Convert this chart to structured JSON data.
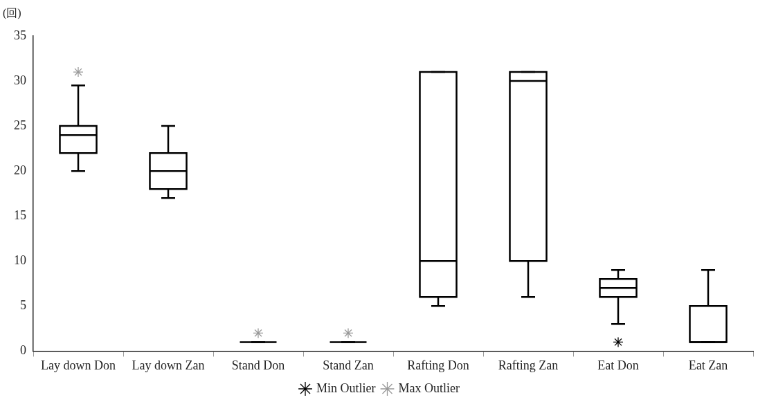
{
  "chart_data": {
    "type": "box",
    "ylabel": "(回)",
    "categories": [
      "Lay down Don",
      "Lay down Zan",
      "Stand Don",
      "Stand Zan",
      "Rafting Don",
      "Rafting Zan",
      "Eat Don",
      "Eat Zan"
    ],
    "series": [
      {
        "color": "#000000",
        "boxes": [
          {
            "low": 20,
            "q1": 22,
            "median": 24,
            "q3": 25,
            "high": 29.5
          },
          {
            "low": 17,
            "q1": 18,
            "median": 20,
            "q3": 22,
            "high": 25
          },
          {
            "low": 1,
            "q1": 1,
            "median": 1,
            "q3": 1,
            "high": 1
          },
          {
            "low": 1,
            "q1": 1,
            "median": 1,
            "q3": 1,
            "high": 1
          },
          {
            "low": 5,
            "q1": 6,
            "median": 10,
            "q3": 31,
            "high": 31
          },
          {
            "low": 6,
            "q1": 10,
            "median": 30,
            "q3": 31,
            "high": 31
          },
          {
            "low": 3,
            "q1": 6,
            "median": 7,
            "q3": 8,
            "high": 9
          },
          {
            "low": 1,
            "q1": 1,
            "median": 1,
            "q3": 5,
            "high": 9
          }
        ]
      },
      {
        "type": "scatter",
        "name": "Min Outlier",
        "color": "#000000",
        "x": [
          "Eat Don"
        ],
        "values": [
          1
        ]
      },
      {
        "type": "scatter",
        "name": "Max Outlier",
        "color": "#999999",
        "x": [
          "Lay down Don",
          "Stand Don",
          "Stand Zan"
        ],
        "values": [
          31,
          2,
          2
        ]
      }
    ],
    "ylim": [
      0,
      35
    ],
    "yticks": [
      0,
      5,
      10,
      15,
      20,
      25,
      30,
      35
    ],
    "grid": false,
    "legend": "bottom",
    "marker": "cross"
  }
}
